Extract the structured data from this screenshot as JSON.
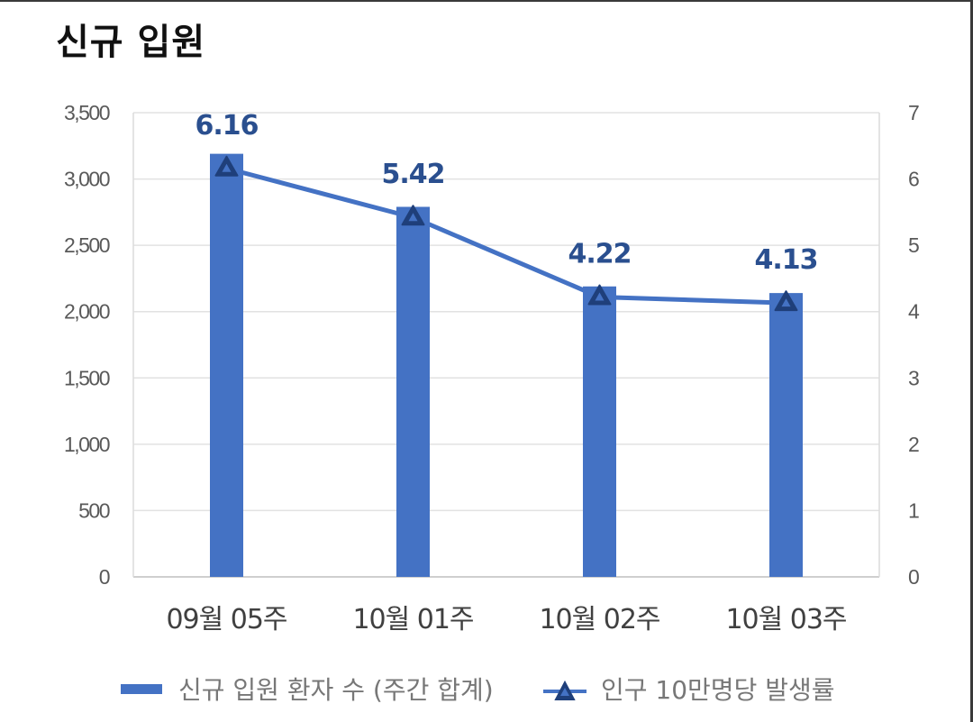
{
  "title": "신규 입원",
  "chart_data": {
    "type": "bar+line",
    "title": "신규 입원",
    "categories": [
      "09월 05주",
      "10월 01주",
      "10월 02주",
      "10월 03주"
    ],
    "series": [
      {
        "name": "신규 입원 환자 수 (주간 합계)",
        "type": "bar",
        "axis": "left",
        "values": [
          3190,
          2790,
          2190,
          2140
        ],
        "color": "#4472c4"
      },
      {
        "name": "인구 10만명당 발생률",
        "type": "line",
        "axis": "right",
        "values": [
          6.16,
          5.42,
          4.22,
          4.13
        ],
        "labels": [
          "6.16",
          "5.42",
          "4.22",
          "4.13"
        ],
        "color": "#4472c4",
        "marker": "triangle"
      }
    ],
    "left_axis": {
      "ylim": [
        0,
        3500
      ],
      "ticks": [
        0,
        500,
        1000,
        1500,
        2000,
        2500,
        3000,
        3500
      ],
      "tick_labels": [
        "0",
        "500",
        "1,000",
        "1,500",
        "2,000",
        "2,500",
        "3,000",
        "3,500"
      ]
    },
    "right_axis": {
      "ylim": [
        0,
        7
      ],
      "ticks": [
        0,
        1,
        2,
        3,
        4,
        5,
        6,
        7
      ],
      "tick_labels": [
        "0",
        "1",
        "2",
        "3",
        "4",
        "5",
        "6",
        "7"
      ]
    },
    "grid": true,
    "legend_position": "bottom"
  },
  "legend": {
    "bar_label": "신규 입원 환자 수 (주간 합계)",
    "line_label": "인구 10만명당 발생률"
  }
}
